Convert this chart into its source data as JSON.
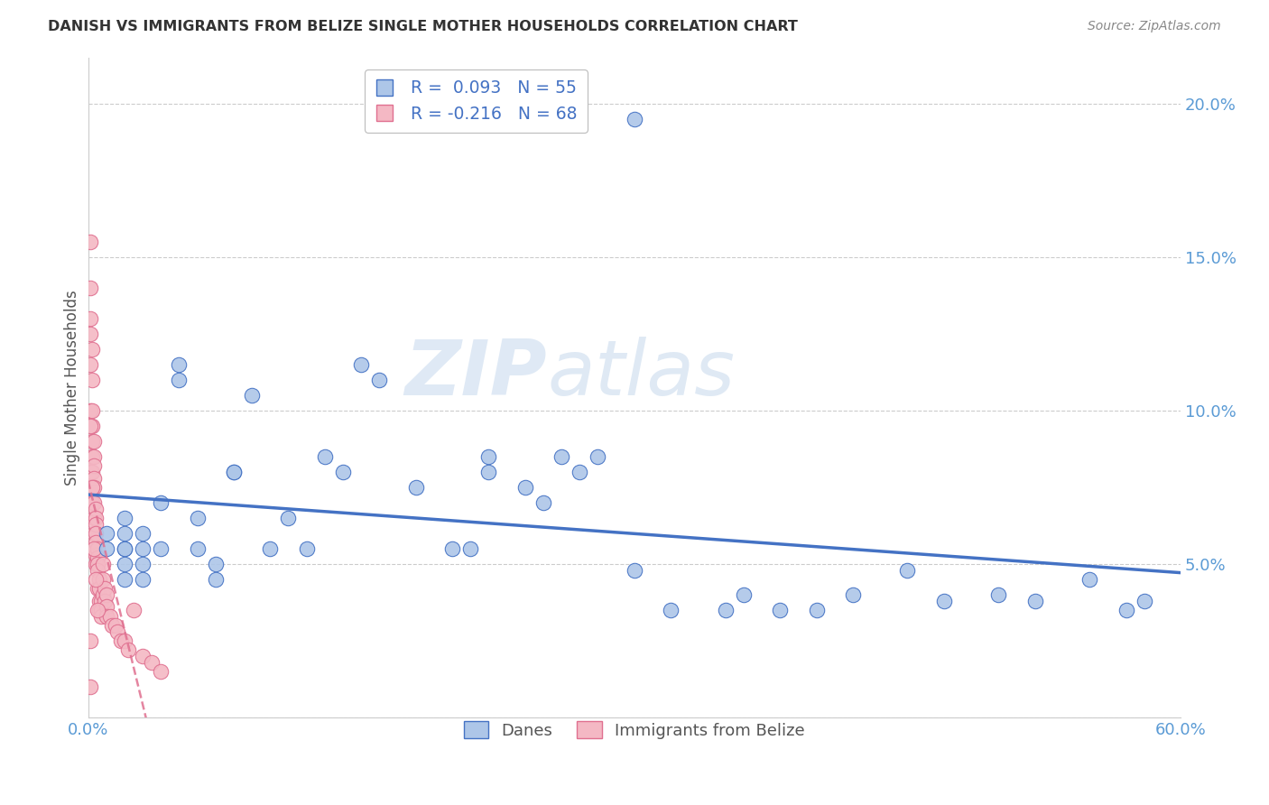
{
  "title": "DANISH VS IMMIGRANTS FROM BELIZE SINGLE MOTHER HOUSEHOLDS CORRELATION CHART",
  "source": "Source: ZipAtlas.com",
  "ylabel": "Single Mother Households",
  "yticks": [
    0.0,
    0.05,
    0.1,
    0.15,
    0.2
  ],
  "xlim": [
    0.0,
    0.6
  ],
  "ylim": [
    0.0,
    0.215
  ],
  "legend_danes_R": 0.093,
  "legend_danes_N": 55,
  "legend_belize_R": -0.216,
  "legend_belize_N": 68,
  "legend_label_danes": "Danes",
  "legend_label_belize": "Immigrants from Belize",
  "blue_color": "#adc6e8",
  "blue_line_color": "#4472c4",
  "pink_color": "#f4b8c4",
  "pink_line_color": "#e07090",
  "title_color": "#333333",
  "source_color": "#888888",
  "axis_color": "#5b9bd5",
  "grid_color": "#cccccc",
  "watermark_color": "#d0e4f5",
  "danes_x": [
    0.3,
    0.15,
    0.16,
    0.26,
    0.27,
    0.22,
    0.22,
    0.24,
    0.13,
    0.14,
    0.2,
    0.21,
    0.12,
    0.18,
    0.09,
    0.1,
    0.11,
    0.08,
    0.08,
    0.07,
    0.07,
    0.06,
    0.06,
    0.05,
    0.05,
    0.04,
    0.04,
    0.03,
    0.03,
    0.03,
    0.03,
    0.02,
    0.02,
    0.02,
    0.02,
    0.02,
    0.02,
    0.01,
    0.01,
    0.25,
    0.28,
    0.3,
    0.32,
    0.35,
    0.36,
    0.38,
    0.4,
    0.42,
    0.45,
    0.47,
    0.5,
    0.52,
    0.55,
    0.58,
    0.57
  ],
  "danes_y": [
    0.195,
    0.115,
    0.11,
    0.085,
    0.08,
    0.085,
    0.08,
    0.075,
    0.085,
    0.08,
    0.055,
    0.055,
    0.055,
    0.075,
    0.105,
    0.055,
    0.065,
    0.08,
    0.08,
    0.05,
    0.045,
    0.065,
    0.055,
    0.11,
    0.115,
    0.07,
    0.055,
    0.06,
    0.055,
    0.05,
    0.045,
    0.065,
    0.055,
    0.05,
    0.045,
    0.06,
    0.055,
    0.06,
    0.055,
    0.07,
    0.085,
    0.048,
    0.035,
    0.035,
    0.04,
    0.035,
    0.035,
    0.04,
    0.048,
    0.038,
    0.04,
    0.038,
    0.045,
    0.038,
    0.035
  ],
  "belize_x": [
    0.001,
    0.001,
    0.001,
    0.001,
    0.001,
    0.001,
    0.001,
    0.002,
    0.002,
    0.002,
    0.002,
    0.002,
    0.002,
    0.002,
    0.002,
    0.003,
    0.003,
    0.003,
    0.003,
    0.003,
    0.003,
    0.003,
    0.003,
    0.004,
    0.004,
    0.004,
    0.004,
    0.004,
    0.004,
    0.004,
    0.005,
    0.005,
    0.005,
    0.005,
    0.005,
    0.006,
    0.006,
    0.006,
    0.006,
    0.007,
    0.007,
    0.007,
    0.008,
    0.008,
    0.008,
    0.009,
    0.009,
    0.01,
    0.01,
    0.01,
    0.012,
    0.013,
    0.015,
    0.016,
    0.018,
    0.02,
    0.022,
    0.025,
    0.03,
    0.035,
    0.04,
    0.001,
    0.002,
    0.003,
    0.004,
    0.005,
    0.001,
    0.001
  ],
  "belize_y": [
    0.155,
    0.14,
    0.13,
    0.125,
    0.115,
    0.1,
    0.08,
    0.12,
    0.11,
    0.1,
    0.095,
    0.09,
    0.085,
    0.08,
    0.07,
    0.09,
    0.085,
    0.082,
    0.078,
    0.075,
    0.07,
    0.065,
    0.06,
    0.068,
    0.065,
    0.063,
    0.06,
    0.057,
    0.053,
    0.05,
    0.055,
    0.052,
    0.05,
    0.048,
    0.042,
    0.045,
    0.042,
    0.038,
    0.035,
    0.038,
    0.035,
    0.033,
    0.05,
    0.045,
    0.04,
    0.042,
    0.038,
    0.04,
    0.036,
    0.033,
    0.033,
    0.03,
    0.03,
    0.028,
    0.025,
    0.025,
    0.022,
    0.035,
    0.02,
    0.018,
    0.015,
    0.095,
    0.075,
    0.055,
    0.045,
    0.035,
    0.025,
    0.01
  ]
}
